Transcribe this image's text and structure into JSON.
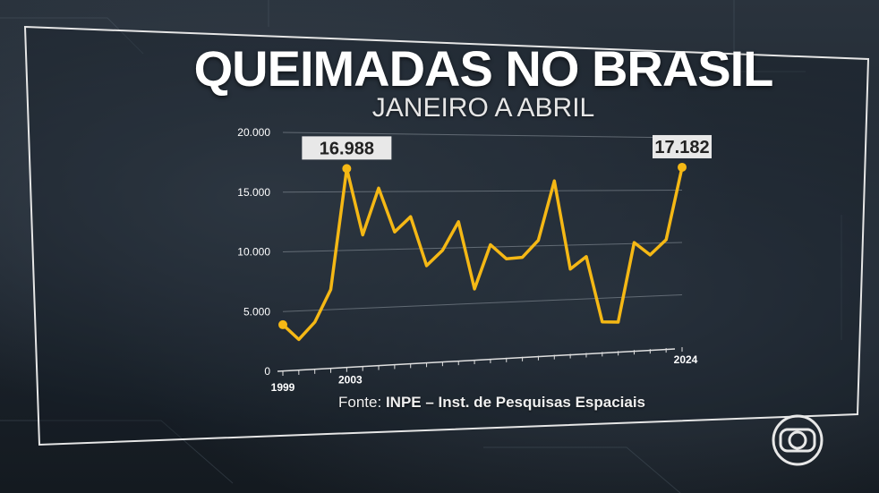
{
  "title": "QUEIMADAS NO BRASIL",
  "subtitle": "JANEIRO A ABRIL",
  "source_prefix": "Fonte:",
  "source_name": "INPE – Inst. de Pesquisas Espaciais",
  "logo_icon": "globo-logo-icon",
  "colors": {
    "line": "#f5b815",
    "text": "#ffffff",
    "panel_border": "#e8e8e8",
    "callout_bg": "#e8e8e8"
  },
  "chart_data": {
    "type": "line",
    "title": "QUEIMADAS NO BRASIL",
    "subtitle": "JANEIRO A ABRIL",
    "x": [
      1999,
      2000,
      2001,
      2002,
      2003,
      2004,
      2005,
      2006,
      2007,
      2008,
      2009,
      2010,
      2011,
      2012,
      2013,
      2014,
      2015,
      2016,
      2017,
      2018,
      2019,
      2020,
      2021,
      2022,
      2023,
      2024
    ],
    "x_tick_labels": [
      {
        "x": 1999,
        "label": "1999"
      },
      {
        "x": 2003,
        "label": "2003"
      },
      {
        "x": 2024,
        "label": "2024"
      }
    ],
    "series": [
      {
        "values": [
          3900,
          2600,
          4000,
          6700,
          16988,
          11300,
          15300,
          11500,
          12800,
          8500,
          9800,
          12300,
          6300,
          10200,
          8900,
          9000,
          10500,
          15900,
          7800,
          8900,
          2800,
          2700,
          10100,
          8900,
          10300,
          17182
        ]
      }
    ],
    "y_ticks": [
      {
        "value": 0,
        "label": "0"
      },
      {
        "value": 5000,
        "label": "5.000"
      },
      {
        "value": 10000,
        "label": "10.000"
      },
      {
        "value": 15000,
        "label": "15.000"
      },
      {
        "value": 20000,
        "label": "20.000"
      }
    ],
    "ylim": [
      0,
      20000
    ],
    "grid": true,
    "callouts": [
      {
        "x": 2003,
        "label": "16.988"
      },
      {
        "x": 2024,
        "label": "17.182"
      }
    ],
    "marked_points": [
      1999,
      2003,
      2024
    ]
  }
}
